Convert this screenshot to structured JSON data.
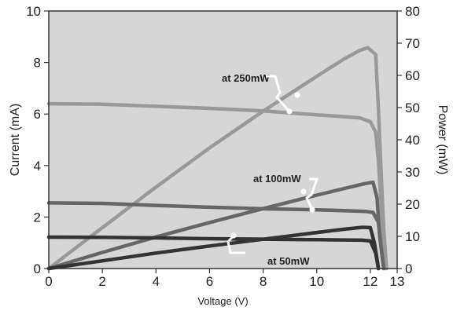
{
  "chart_data": {
    "type": "line",
    "title": "",
    "xlabel": "Voltage (V)",
    "ylabel": "Current (mA)",
    "y2label": "Power (mW)",
    "xlim": [
      0,
      13
    ],
    "ylim": [
      0,
      10
    ],
    "y2lim": [
      0,
      80
    ],
    "x_ticks": [
      {
        "value": 0,
        "label": "0"
      },
      {
        "value": 2,
        "label": "2"
      },
      {
        "value": 4,
        "label": "4"
      },
      {
        "value": 6,
        "label": "6"
      },
      {
        "value": 8,
        "label": "8"
      },
      {
        "value": 10,
        "label": "10"
      },
      {
        "value": 12,
        "label": "12"
      },
      {
        "value": 13,
        "label": "13"
      }
    ],
    "y_ticks": [
      {
        "value": 0,
        "label": "0"
      },
      {
        "value": 2,
        "label": "2"
      },
      {
        "value": 4,
        "label": "4"
      },
      {
        "value": 6,
        "label": "6"
      },
      {
        "value": 8,
        "label": "8"
      },
      {
        "value": 10,
        "label": "10"
      }
    ],
    "y2_ticks": [
      {
        "value": 0,
        "label": "0"
      },
      {
        "value": 10,
        "label": "10"
      },
      {
        "value": 20,
        "label": "20"
      },
      {
        "value": 30,
        "label": "30"
      },
      {
        "value": 40,
        "label": "40"
      },
      {
        "value": 50,
        "label": "50"
      },
      {
        "value": 60,
        "label": "60"
      },
      {
        "value": 70,
        "label": "70"
      },
      {
        "value": 80,
        "label": "80"
      }
    ],
    "grid": false,
    "background_color": "#d6d6d6",
    "series": [
      {
        "name": "at 250mW",
        "color": "#999999",
        "current": {
          "x": [
            0,
            2,
            4,
            6,
            8,
            9,
            10,
            11,
            11.6,
            12.0,
            12.2,
            12.3,
            12.4,
            12.5,
            12.6
          ],
          "y": [
            6.4,
            6.38,
            6.3,
            6.22,
            6.12,
            6.04,
            5.97,
            5.9,
            5.85,
            5.7,
            5.3,
            4.2,
            2.5,
            1.0,
            0
          ]
        },
        "power": {
          "x": [
            0,
            2,
            4,
            6,
            8,
            10,
            11,
            11.6,
            11.9,
            12.2,
            12.3,
            12.4,
            12.5,
            12.6
          ],
          "y": [
            0,
            12.7,
            25.3,
            37.5,
            48.9,
            59.7,
            65,
            67.7,
            68.6,
            66.5,
            50,
            30,
            12,
            0
          ]
        }
      },
      {
        "name": "at 100mW",
        "color": "#666666",
        "current": {
          "x": [
            0,
            2,
            4,
            6,
            8,
            10,
            11,
            11.8,
            12.1,
            12.3,
            12.4,
            12.5
          ],
          "y": [
            2.55,
            2.53,
            2.45,
            2.38,
            2.32,
            2.28,
            2.25,
            2.22,
            2.18,
            1.8,
            0.8,
            0
          ]
        },
        "power": {
          "x": [
            0,
            2,
            4,
            6,
            8,
            10,
            11,
            11.8,
            12.1,
            12.25,
            12.35,
            12.5
          ],
          "y": [
            0,
            5,
            9.8,
            14.3,
            18.6,
            22.8,
            24.8,
            26.4,
            26.8,
            22,
            10,
            0
          ]
        }
      },
      {
        "name": "at 50mW",
        "color": "#333333",
        "current": {
          "x": [
            0,
            2,
            4,
            6,
            8,
            10,
            11,
            11.7,
            12.0,
            12.2,
            12.3
          ],
          "y": [
            1.22,
            1.21,
            1.19,
            1.16,
            1.14,
            1.12,
            1.11,
            1.1,
            1.07,
            0.6,
            0
          ]
        },
        "power": {
          "x": [
            0,
            2,
            4,
            6,
            8,
            10,
            11,
            11.7,
            12.0,
            12.15,
            12.25,
            12.3
          ],
          "y": [
            0,
            2.4,
            4.8,
            7,
            9.1,
            11.2,
            12.2,
            12.8,
            12.7,
            8,
            3,
            0
          ]
        }
      }
    ],
    "annotations": [
      {
        "text": "at 250mW",
        "series": 0
      },
      {
        "text": "at 100mW",
        "series": 1
      },
      {
        "text": "at 50mW",
        "series": 2
      }
    ]
  }
}
